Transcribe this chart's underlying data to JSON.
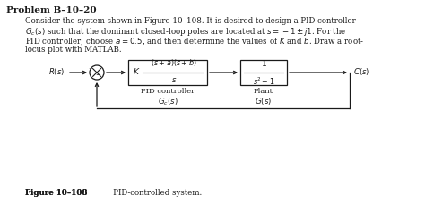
{
  "title": "Problem B–10–20",
  "body_lines": [
    "Consider the system shown in Figure 10–108. It is desired to design a PID controller",
    "$G_c(s)$ such that the dominant closed-loop poles are located at $s = -1 \\pm j1$. For the",
    "PID controller, choose $a = 0.5$, and then determine the values of $K$ and $b$. Draw a root-",
    "locus plot with MATLAB."
  ],
  "R_label": "$R(s)$",
  "C_label": "$C(s)$",
  "pid_box_label1": "PID controller",
  "pid_box_label2": "$G_c(s)$",
  "plant_box_label1": "Plant",
  "plant_box_label2": "$G(s)$",
  "figure_caption_bold": "Figure 10–108",
  "figure_caption_normal": "   PID-controlled system.",
  "bg_color": "#ffffff",
  "text_color": "#1a1a1a",
  "line_color": "#1a1a1a"
}
